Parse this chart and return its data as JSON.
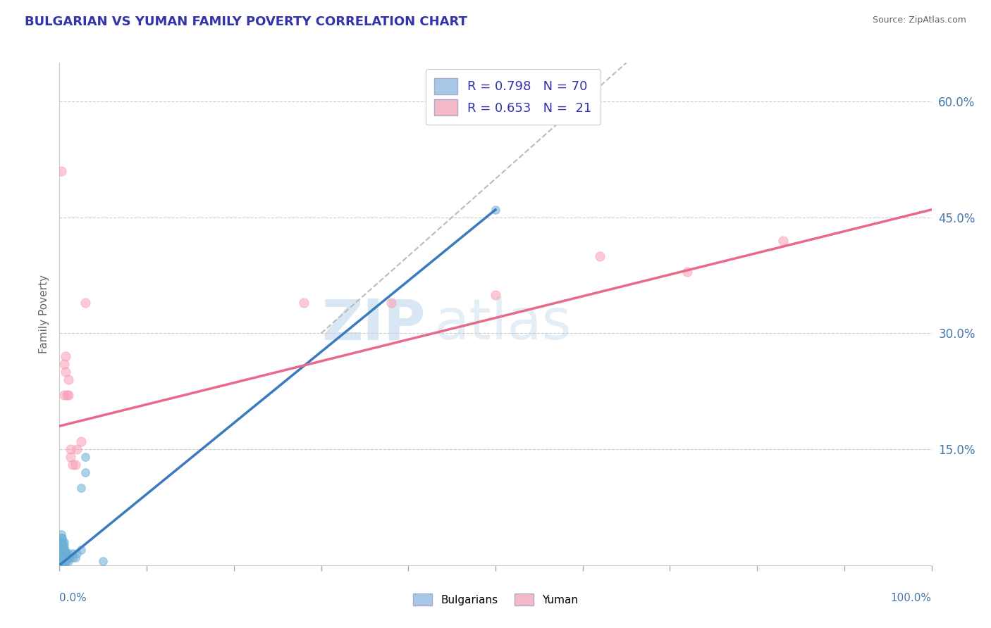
{
  "title": "BULGARIAN VS YUMAN FAMILY POVERTY CORRELATION CHART",
  "source": "Source: ZipAtlas.com",
  "ylabel": "Family Poverty",
  "yticks": [
    0.0,
    0.15,
    0.3,
    0.45,
    0.6
  ],
  "ytick_labels": [
    "",
    "15.0%",
    "30.0%",
    "45.0%",
    "60.0%"
  ],
  "xlim": [
    0.0,
    1.0
  ],
  "ylim": [
    0.0,
    0.65
  ],
  "blue_scatter": [
    [
      0.001,
      0.005
    ],
    [
      0.001,
      0.008
    ],
    [
      0.001,
      0.01
    ],
    [
      0.001,
      0.012
    ],
    [
      0.001,
      0.015
    ],
    [
      0.001,
      0.018
    ],
    [
      0.001,
      0.02
    ],
    [
      0.001,
      0.025
    ],
    [
      0.002,
      0.005
    ],
    [
      0.002,
      0.008
    ],
    [
      0.002,
      0.01
    ],
    [
      0.002,
      0.012
    ],
    [
      0.002,
      0.015
    ],
    [
      0.002,
      0.018
    ],
    [
      0.002,
      0.02
    ],
    [
      0.002,
      0.025
    ],
    [
      0.002,
      0.03
    ],
    [
      0.002,
      0.035
    ],
    [
      0.002,
      0.04
    ],
    [
      0.003,
      0.005
    ],
    [
      0.003,
      0.008
    ],
    [
      0.003,
      0.01
    ],
    [
      0.003,
      0.012
    ],
    [
      0.003,
      0.015
    ],
    [
      0.003,
      0.018
    ],
    [
      0.003,
      0.02
    ],
    [
      0.003,
      0.025
    ],
    [
      0.003,
      0.03
    ],
    [
      0.003,
      0.035
    ],
    [
      0.004,
      0.005
    ],
    [
      0.004,
      0.008
    ],
    [
      0.004,
      0.01
    ],
    [
      0.004,
      0.015
    ],
    [
      0.004,
      0.02
    ],
    [
      0.004,
      0.025
    ],
    [
      0.004,
      0.03
    ],
    [
      0.005,
      0.005
    ],
    [
      0.005,
      0.01
    ],
    [
      0.005,
      0.015
    ],
    [
      0.005,
      0.02
    ],
    [
      0.005,
      0.025
    ],
    [
      0.005,
      0.03
    ],
    [
      0.006,
      0.005
    ],
    [
      0.006,
      0.01
    ],
    [
      0.006,
      0.015
    ],
    [
      0.006,
      0.02
    ],
    [
      0.007,
      0.005
    ],
    [
      0.007,
      0.01
    ],
    [
      0.007,
      0.015
    ],
    [
      0.008,
      0.005
    ],
    [
      0.008,
      0.01
    ],
    [
      0.008,
      0.015
    ],
    [
      0.01,
      0.005
    ],
    [
      0.01,
      0.01
    ],
    [
      0.01,
      0.015
    ],
    [
      0.012,
      0.01
    ],
    [
      0.015,
      0.01
    ],
    [
      0.015,
      0.015
    ],
    [
      0.018,
      0.01
    ],
    [
      0.02,
      0.015
    ],
    [
      0.025,
      0.02
    ],
    [
      0.025,
      0.1
    ],
    [
      0.03,
      0.12
    ],
    [
      0.03,
      0.14
    ],
    [
      0.05,
      0.005
    ],
    [
      0.5,
      0.46
    ]
  ],
  "pink_scatter": [
    [
      0.002,
      0.51
    ],
    [
      0.005,
      0.22
    ],
    [
      0.005,
      0.26
    ],
    [
      0.007,
      0.25
    ],
    [
      0.007,
      0.27
    ],
    [
      0.009,
      0.22
    ],
    [
      0.01,
      0.22
    ],
    [
      0.01,
      0.24
    ],
    [
      0.013,
      0.14
    ],
    [
      0.013,
      0.15
    ],
    [
      0.015,
      0.13
    ],
    [
      0.018,
      0.13
    ],
    [
      0.02,
      0.15
    ],
    [
      0.025,
      0.16
    ],
    [
      0.03,
      0.34
    ],
    [
      0.28,
      0.34
    ],
    [
      0.38,
      0.34
    ],
    [
      0.5,
      0.35
    ],
    [
      0.62,
      0.4
    ],
    [
      0.72,
      0.38
    ],
    [
      0.83,
      0.42
    ]
  ],
  "blue_line": [
    [
      0.0,
      0.0
    ],
    [
      0.5,
      0.46
    ]
  ],
  "pink_line": [
    [
      0.0,
      0.18
    ],
    [
      1.0,
      0.46
    ]
  ],
  "gray_dashed_line": [
    [
      0.3,
      0.3
    ],
    [
      0.65,
      0.65
    ]
  ],
  "blue_scatter_color": "#6baed6",
  "pink_scatter_color": "#fa9fb5",
  "blue_line_color": "#3a7abf",
  "pink_line_color": "#e8698a",
  "gray_line_color": "#bbbbbb",
  "watermark_zip": "ZIP",
  "watermark_atlas": "atlas",
  "title_color": "#3333aa",
  "title_fontsize": 13,
  "axis_label_color": "#4477aa",
  "legend_blue_color": "#a8c8e8",
  "legend_pink_color": "#f5b8c8"
}
